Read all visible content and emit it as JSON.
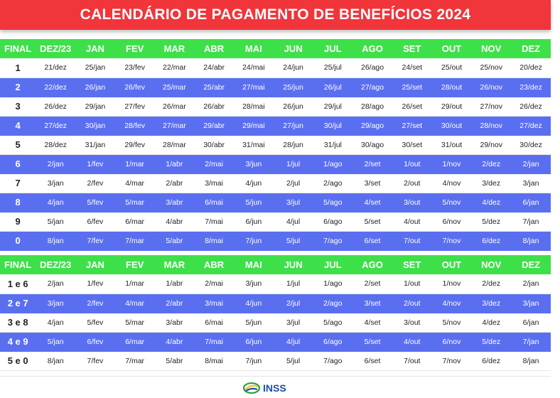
{
  "title": "CALENDÁRIO DE PAGAMENTO DE BENEFÍCIOS 2024",
  "headers": [
    "FINAL",
    "DEZ/23",
    "JAN",
    "FEV",
    "MAR",
    "ABR",
    "MAI",
    "JUN",
    "JUL",
    "AGO",
    "SET",
    "OUT",
    "NOV",
    "DEZ"
  ],
  "table1": [
    [
      "1",
      "21/dez",
      "25/jan",
      "23/fev",
      "22/mar",
      "24/abr",
      "24/mai",
      "24/jun",
      "25/jul",
      "26/ago",
      "24/set",
      "25/out",
      "25/nov",
      "20/dez"
    ],
    [
      "2",
      "22/dez",
      "26/jan",
      "26/fev",
      "25/mar",
      "25/abr",
      "27/mai",
      "25/jun",
      "26/jul",
      "27/ago",
      "25/set",
      "28/out",
      "26/nov",
      "23/dez"
    ],
    [
      "3",
      "26/dez",
      "29/jan",
      "27/fev",
      "26/mar",
      "26/abr",
      "28/mai",
      "26/jun",
      "29/jul",
      "28/ago",
      "26/set",
      "29/out",
      "27/nov",
      "26/dez"
    ],
    [
      "4",
      "27/dez",
      "30/jan",
      "28/fev",
      "27/mar",
      "29/abr",
      "29/mai",
      "27/jun",
      "30/jul",
      "29/ago",
      "27/set",
      "30/out",
      "28/nov",
      "27/dez"
    ],
    [
      "5",
      "28/dez",
      "31/jan",
      "29/fev",
      "28/mar",
      "30/abr",
      "31/mai",
      "28/jun",
      "31/jul",
      "30/ago",
      "30/set",
      "31/out",
      "29/nov",
      "30/dez"
    ],
    [
      "6",
      "2/jan",
      "1/fev",
      "1/mar",
      "1/abr",
      "2/mai",
      "3/jun",
      "1/jul",
      "1/ago",
      "2/set",
      "1/out",
      "1/nov",
      "2/dez",
      "2/jan"
    ],
    [
      "7",
      "3/jan",
      "2/fev",
      "4/mar",
      "2/abr",
      "3/mai",
      "4/jun",
      "2/jul",
      "2/ago",
      "3/set",
      "2/out",
      "4/nov",
      "3/dez",
      "3/jan"
    ],
    [
      "8",
      "4/jan",
      "5/fev",
      "5/mar",
      "3/abr",
      "6/mai",
      "5/jun",
      "3/jul",
      "5/ago",
      "4/set",
      "3/out",
      "5/nov",
      "4/dez",
      "6/jan"
    ],
    [
      "9",
      "5/jan",
      "6/fev",
      "6/mar",
      "4/abr",
      "7/mai",
      "6/jun",
      "4/jul",
      "6/ago",
      "5/set",
      "4/out",
      "6/nov",
      "5/dez",
      "7/jan"
    ],
    [
      "0",
      "8/jan",
      "7/fev",
      "7/mar",
      "5/abr",
      "8/mai",
      "7/jun",
      "5/jul",
      "7/ago",
      "6/set",
      "7/out",
      "7/nov",
      "6/dez",
      "8/jan"
    ]
  ],
  "table2": [
    [
      "1 e 6",
      "2/jan",
      "1/fev",
      "1/mar",
      "1/abr",
      "2/mai",
      "3/jun",
      "1/jul",
      "1/ago",
      "2/set",
      "1/out",
      "1/nov",
      "2/dez",
      "2/jan"
    ],
    [
      "2 e 7",
      "3/jan",
      "2/fev",
      "4/mar",
      "2/abr",
      "3/mai",
      "4/jun",
      "2/jul",
      "2/ago",
      "3/set",
      "2/out",
      "4/nov",
      "3/dez",
      "3/jan"
    ],
    [
      "3 e 8",
      "4/jan",
      "5/fev",
      "5/mar",
      "3/abr",
      "6/mai",
      "5/jun",
      "3/jul",
      "5/ago",
      "4/set",
      "3/out",
      "5/nov",
      "4/dez",
      "6/jan"
    ],
    [
      "4 e 9",
      "5/jan",
      "6/fev",
      "6/mar",
      "4/abr",
      "7/mai",
      "6/jun",
      "4/jul",
      "6/ago",
      "5/set",
      "4/out",
      "6/nov",
      "5/dez",
      "7/jan"
    ],
    [
      "5 e 0",
      "8/jan",
      "7/fev",
      "7/mar",
      "5/abr",
      "8/mai",
      "7/jun",
      "5/jul",
      "7/ago",
      "6/set",
      "7/out",
      "7/nov",
      "6/dez",
      "8/jan"
    ]
  ],
  "logo": {
    "text": "INSS",
    "icon": "inss-logo-icon"
  },
  "colors": {
    "banner": "#f0353b",
    "header": "#3ee04a",
    "alt_row": "#5a6ff0"
  }
}
